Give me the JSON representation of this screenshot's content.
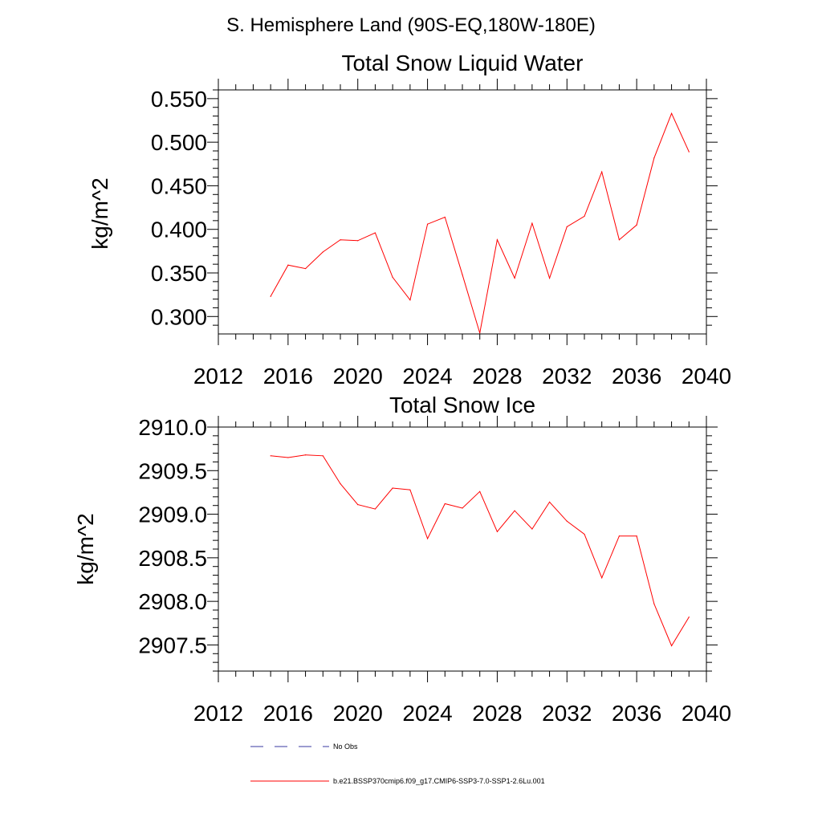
{
  "page_title": "S. Hemisphere Land (90S-EQ,180W-180E)",
  "colors": {
    "series": "#ff0000",
    "obs": "#3a3aa0",
    "axis": "#000000"
  },
  "chart_data": [
    {
      "type": "line",
      "title": "Total Snow Liquid Water",
      "ylabel": "kg/m^2",
      "xlabel": "",
      "xlim": [
        2012,
        2040
      ],
      "ylim": [
        0.28,
        0.56
      ],
      "x_ticks": [
        "2012",
        "2016",
        "2020",
        "2024",
        "2028",
        "2032",
        "2036",
        "2040"
      ],
      "y_ticks": [
        "0.300",
        "0.350",
        "0.400",
        "0.450",
        "0.500",
        "0.550"
      ],
      "grid": false,
      "series": [
        {
          "name": "b.e21.BSSP370cmip6.f09_g17.CMIP6-SSP3-7.0-SSP1-2.6Lu.001",
          "x": [
            2015,
            2016,
            2017,
            2018,
            2019,
            2020,
            2021,
            2022,
            2023,
            2024,
            2025,
            2026,
            2027,
            2028,
            2029,
            2030,
            2031,
            2032,
            2033,
            2034,
            2035,
            2036,
            2037,
            2038,
            2039
          ],
          "values": [
            0.323,
            0.359,
            0.355,
            0.374,
            0.388,
            0.387,
            0.396,
            0.345,
            0.319,
            0.406,
            0.414,
            0.348,
            0.281,
            0.388,
            0.344,
            0.407,
            0.344,
            0.403,
            0.415,
            0.466,
            0.388,
            0.405,
            0.482,
            0.533,
            0.489
          ]
        }
      ]
    },
    {
      "type": "line",
      "title": "Total Snow Ice",
      "ylabel": "kg/m^2",
      "xlabel": "",
      "xlim": [
        2012,
        2040
      ],
      "ylim": [
        2907.2,
        2910.0
      ],
      "x_ticks": [
        "2012",
        "2016",
        "2020",
        "2024",
        "2028",
        "2032",
        "2036",
        "2040"
      ],
      "y_ticks": [
        "2907.5",
        "2908.0",
        "2908.5",
        "2909.0",
        "2909.5",
        "2910.0"
      ],
      "grid": false,
      "series": [
        {
          "name": "b.e21.BSSP370cmip6.f09_g17.CMIP6-SSP3-7.0-SSP1-2.6Lu.001",
          "x": [
            2015,
            2016,
            2017,
            2018,
            2019,
            2020,
            2021,
            2022,
            2023,
            2024,
            2025,
            2026,
            2027,
            2028,
            2029,
            2030,
            2031,
            2032,
            2033,
            2034,
            2035,
            2036,
            2037,
            2038,
            2039
          ],
          "values": [
            2909.67,
            2909.65,
            2909.68,
            2909.67,
            2909.35,
            2909.11,
            2909.06,
            2909.3,
            2909.28,
            2908.72,
            2909.12,
            2909.07,
            2909.26,
            2908.8,
            2909.04,
            2908.83,
            2909.14,
            2908.92,
            2908.77,
            2908.27,
            2908.75,
            2908.75,
            2907.97,
            2907.49,
            2907.82
          ]
        }
      ]
    }
  ],
  "legend": [
    {
      "label": "No Obs",
      "style": "dashed",
      "color": "#3a3aa0"
    },
    {
      "label": "b.e21.BSSP370cmip6.f09_g17.CMIP6-SSP3-7.0-SSP1-2.6Lu.001",
      "style": "solid",
      "color": "#ff0000"
    }
  ]
}
